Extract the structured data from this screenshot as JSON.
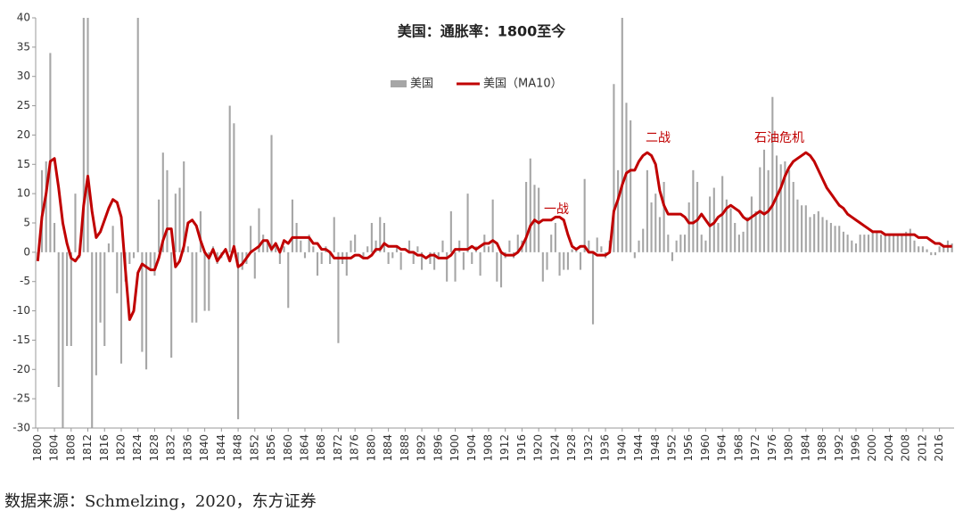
{
  "chart_data": {
    "type": "bar_line",
    "title": "美国：通胀率：1800至今",
    "source": "数据来源：Schmelzing，2020，东方证券",
    "annotations": [
      "一战",
      "二战",
      "石油危机"
    ],
    "x": [
      1800,
      1801,
      1802,
      1803,
      1804,
      1805,
      1806,
      1807,
      1808,
      1809,
      1810,
      1811,
      1812,
      1813,
      1814,
      1815,
      1816,
      1817,
      1818,
      1819,
      1820,
      1821,
      1822,
      1823,
      1824,
      1825,
      1826,
      1827,
      1828,
      1829,
      1830,
      1831,
      1832,
      1833,
      1834,
      1835,
      1836,
      1837,
      1838,
      1839,
      1840,
      1841,
      1842,
      1843,
      1844,
      1845,
      1846,
      1847,
      1848,
      1849,
      1850,
      1851,
      1852,
      1853,
      1854,
      1855,
      1856,
      1857,
      1858,
      1859,
      1860,
      1861,
      1862,
      1863,
      1864,
      1865,
      1866,
      1867,
      1868,
      1869,
      1870,
      1871,
      1872,
      1873,
      1874,
      1875,
      1876,
      1877,
      1878,
      1879,
      1880,
      1881,
      1882,
      1883,
      1884,
      1885,
      1886,
      1887,
      1888,
      1889,
      1890,
      1891,
      1892,
      1893,
      1894,
      1895,
      1896,
      1897,
      1898,
      1899,
      1900,
      1901,
      1902,
      1903,
      1904,
      1905,
      1906,
      1907,
      1908,
      1909,
      1910,
      1911,
      1912,
      1913,
      1914,
      1915,
      1916,
      1917,
      1918,
      1919,
      1920,
      1921,
      1922,
      1923,
      1924,
      1925,
      1926,
      1927,
      1928,
      1929,
      1930,
      1931,
      1932,
      1933,
      1934,
      1935,
      1936,
      1937,
      1938,
      1939,
      1940,
      1941,
      1942,
      1943,
      1944,
      1945,
      1946,
      1947,
      1948,
      1949,
      1950,
      1951,
      1952,
      1953,
      1954,
      1955,
      1956,
      1957,
      1958,
      1959,
      1960,
      1961,
      1962,
      1963,
      1964,
      1965,
      1966,
      1967,
      1968,
      1969,
      1970,
      1971,
      1972,
      1973,
      1974,
      1975,
      1976,
      1977,
      1978,
      1979,
      1980,
      1981,
      1982,
      1983,
      1984,
      1985,
      1986,
      1987,
      1988,
      1989,
      1990,
      1991,
      1992,
      1993,
      1994,
      1995,
      1996,
      1997,
      1998,
      1999,
      2000,
      2001,
      2002,
      2003,
      2004,
      2005,
      2006,
      2007,
      2008,
      2009,
      2010,
      2011,
      2012,
      2013,
      2014,
      2015,
      2016,
      2017,
      2018,
      2019
    ],
    "series": [
      {
        "name": "美国",
        "type": "bar",
        "color": "#a6a6a6",
        "values": [
          -1.5,
          14,
          15.5,
          34,
          5,
          -23,
          -30,
          -16,
          -16,
          10,
          -1,
          40,
          40,
          -30,
          -21,
          -12,
          -16,
          1.5,
          4.5,
          -7,
          -19,
          -5,
          -2,
          -1,
          40,
          -17,
          -20,
          -3,
          -4,
          9,
          17,
          14,
          -18,
          10,
          11,
          15.5,
          1,
          -12,
          -12,
          7,
          -10,
          -10,
          1,
          -2,
          -1,
          0,
          25,
          22,
          -28.5,
          -3,
          -2,
          4.5,
          -4.5,
          7.5,
          3,
          2,
          20,
          1,
          -2,
          1,
          -9.5,
          9,
          5,
          2,
          -1,
          3,
          1,
          -4,
          -2,
          1,
          -2,
          6,
          -15.5,
          -2,
          -4,
          2,
          3,
          0,
          -1,
          1,
          5,
          2,
          6,
          5,
          -2,
          -1,
          1,
          -3,
          0,
          2,
          -2,
          1,
          -3,
          0,
          -2,
          -3,
          -1,
          2,
          -5,
          7,
          -5,
          2,
          -3,
          10,
          -2,
          1,
          -4,
          3,
          1,
          9,
          -5,
          -6,
          -1,
          2,
          -1,
          3,
          2,
          12,
          16,
          11.5,
          11,
          -5,
          -3,
          3,
          5,
          -4,
          -3,
          -3,
          0.5,
          0.5,
          -3,
          12.5,
          2,
          -12.3,
          2.5,
          1,
          -1,
          2,
          28.7,
          14,
          40,
          25.5,
          22.5,
          -1,
          2,
          4,
          14,
          8.5,
          10,
          6,
          12,
          3,
          -1.5,
          2,
          3,
          3,
          8.5,
          14,
          12,
          3,
          2,
          9.5,
          11,
          5,
          13,
          9,
          7.5,
          5,
          3,
          3.5,
          6,
          9.5,
          7,
          14.5,
          17.5,
          14,
          26.5,
          16.5,
          15,
          15.5,
          14,
          12,
          9,
          8,
          8,
          6,
          6.5,
          7,
          6,
          5.5,
          5,
          4.5,
          4.5,
          3.5,
          3,
          2,
          1.5,
          3,
          3,
          3,
          3.5,
          3.5,
          3,
          3,
          3,
          3,
          3,
          3,
          3.5,
          4,
          2,
          1,
          1,
          0.5,
          -0.5,
          -0.5,
          1,
          1,
          2,
          1.5
        ]
      },
      {
        "name": "美国（MA10）",
        "type": "line",
        "color": "#c00000",
        "values": [
          -1.5,
          6,
          10,
          15.5,
          16,
          11,
          5,
          1.5,
          -1,
          -1.5,
          -0.5,
          8,
          13,
          7,
          2.5,
          3.5,
          5.5,
          7.5,
          9,
          8.5,
          6,
          -3,
          -11.5,
          -10,
          -3.5,
          -2,
          -2.5,
          -3,
          -3,
          -1,
          2,
          4,
          4,
          -2.5,
          -1.5,
          1,
          5,
          5.5,
          4.5,
          2,
          0,
          -1,
          0.5,
          -1.5,
          -0.5,
          0.5,
          -1.5,
          1,
          -2.5,
          -2,
          -1,
          0,
          0.5,
          1,
          2,
          2,
          0.5,
          1.5,
          0,
          2,
          1.5,
          2.5,
          2.5,
          2.5,
          2.5,
          2.5,
          1.5,
          1.5,
          0.5,
          0.5,
          0,
          -1,
          -1,
          -1,
          -1,
          -1,
          -0.5,
          -0.5,
          -1,
          -1,
          -0.5,
          0.5,
          0.5,
          1.5,
          1,
          1,
          1,
          0.5,
          0.5,
          0,
          0,
          -0.5,
          -0.5,
          -1,
          -0.5,
          -0.5,
          -1,
          -1,
          -1,
          -0.5,
          0.5,
          0.5,
          0.5,
          0.5,
          1,
          0.5,
          1,
          1.5,
          1.5,
          2,
          1.5,
          0,
          -0.5,
          -0.5,
          -0.5,
          0,
          1,
          2.5,
          4.5,
          5.5,
          5,
          5.5,
          5.5,
          5.5,
          6,
          6,
          5.5,
          3,
          1,
          0.5,
          1,
          1,
          0,
          0,
          -0.5,
          -0.5,
          -0.5,
          0,
          7,
          9,
          11.5,
          13.5,
          14,
          14,
          15.5,
          16.5,
          17,
          16.5,
          15,
          10.5,
          8,
          6.5,
          6.5,
          6.5,
          6.5,
          6,
          5,
          5,
          5.5,
          6.5,
          5.5,
          4.5,
          5,
          6,
          6.5,
          7.5,
          8,
          7.5,
          7,
          6,
          5.5,
          6,
          6.5,
          7,
          6.5,
          7,
          8,
          9.5,
          11,
          13,
          14.5,
          15.5,
          16,
          16.5,
          17,
          16.5,
          15.5,
          14,
          12.5,
          11,
          10,
          9,
          8,
          7.5,
          6.5,
          6,
          5.5,
          5,
          4.5,
          4,
          3.5,
          3.5,
          3.5,
          3,
          3,
          3,
          3,
          3,
          3,
          3,
          3,
          2.5,
          2.5,
          2.5,
          2,
          1.5,
          1.5,
          1,
          1,
          1
        ]
      }
    ],
    "xlim": [
      1799.5,
      2019.5
    ],
    "xticks": [
      1800,
      1804,
      1808,
      1812,
      1816,
      1820,
      1824,
      1828,
      1832,
      1836,
      1840,
      1844,
      1848,
      1852,
      1856,
      1860,
      1864,
      1868,
      1872,
      1876,
      1880,
      1884,
      1888,
      1892,
      1896,
      1900,
      1904,
      1908,
      1912,
      1916,
      1920,
      1924,
      1928,
      1932,
      1936,
      1940,
      1944,
      1948,
      1952,
      1956,
      1960,
      1964,
      1968,
      1972,
      1976,
      1980,
      1984,
      1988,
      1992,
      1996,
      2000,
      2004,
      2008,
      2012,
      2016
    ],
    "ylim": [
      -30,
      40
    ],
    "yticks": [
      -30,
      -25,
      -20,
      -15,
      -10,
      -5,
      0,
      5,
      10,
      15,
      20,
      25,
      30,
      35,
      40
    ],
    "legend": "top"
  }
}
